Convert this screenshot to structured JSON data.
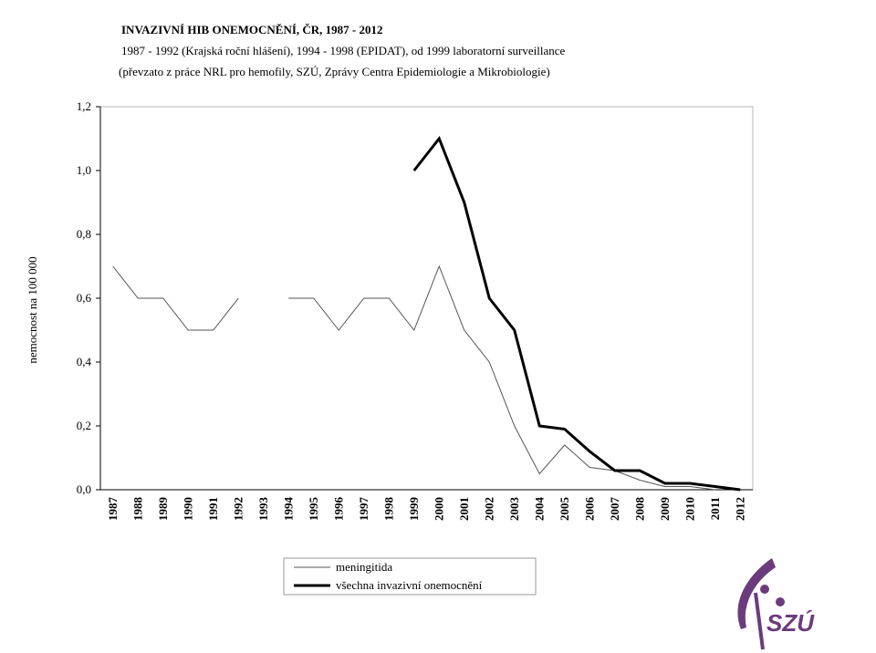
{
  "chart_data": {
    "type": "line",
    "title": "INVAZIVNÍ HIB ONEMOCNĚNÍ, ČR, 1987 - 2012",
    "subtitle": [
      "1987 - 1992 (Krajská roční hlášení), 1994 - 1998 (EPIDAT), od 1999 laboratorní surveillance",
      "(převzato z práce  NRL pro hemofily, SZÚ, Zprávy Centra Epidemiologie a Mikrobiologie)"
    ],
    "y_label": "nemocnost na 100 000",
    "categories": [
      "1987",
      "1988",
      "1989",
      "1990",
      "1991",
      "1992",
      "1993",
      "1994",
      "1995",
      "1996",
      "1997",
      "1998",
      "1999",
      "2000",
      "2001",
      "2002",
      "2003",
      "2004",
      "2005",
      "2006",
      "2007",
      "2008",
      "2009",
      "2010",
      "2011",
      "2012"
    ],
    "series": [
      {
        "name": "meningitida",
        "color": "#555555",
        "width": 1,
        "values": [
          0.7,
          0.6,
          0.6,
          0.5,
          0.5,
          0.6,
          null,
          0.6,
          0.6,
          0.5,
          0.6,
          0.6,
          0.5,
          0.7,
          0.5,
          0.4,
          0.2,
          0.05,
          0.14,
          0.07,
          0.06,
          0.03,
          0.01,
          0.01,
          0.0,
          null
        ]
      },
      {
        "name": "všechna invazivní onemocnění",
        "color": "#000000",
        "width": 3,
        "values": [
          null,
          null,
          null,
          null,
          null,
          null,
          null,
          null,
          null,
          null,
          null,
          null,
          1.0,
          1.1,
          0.9,
          0.6,
          0.5,
          0.2,
          0.19,
          0.12,
          0.06,
          0.06,
          0.02,
          0.02,
          0.01,
          0.0
        ]
      }
    ],
    "ylim": [
      0,
      1.2
    ],
    "yticks": [
      {
        "value": 0,
        "label": "0,0"
      },
      {
        "value": 0.2,
        "label": "0,2"
      },
      {
        "value": 0.4,
        "label": "0,4"
      },
      {
        "value": 0.6,
        "label": "0,6"
      },
      {
        "value": 0.8,
        "label": "0,8"
      },
      {
        "value": 1.0,
        "label": "1,0"
      },
      {
        "value": 1.2,
        "label": "1,2"
      }
    ]
  },
  "logo_text": "SZÚ"
}
